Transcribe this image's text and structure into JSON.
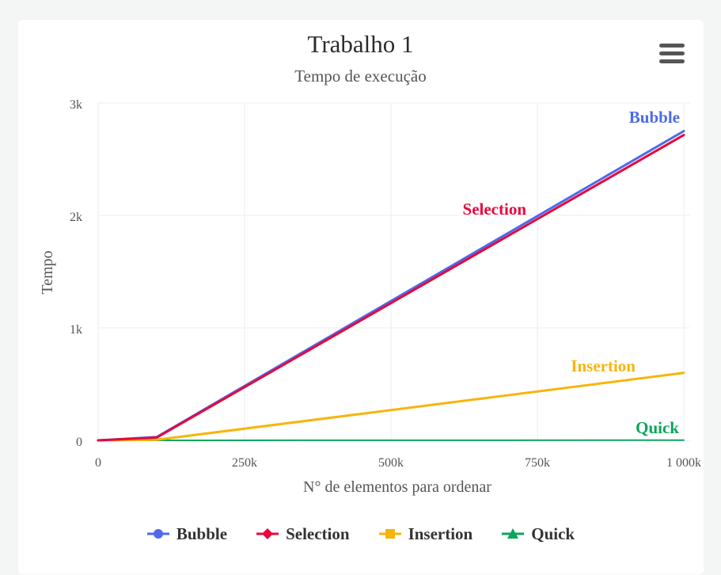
{
  "header": {
    "title": "Trabalho 1",
    "subtitle": "Tempo de execução",
    "menu_icon": "hamburger-menu-icon"
  },
  "colors": {
    "Bubble": "#4d6ae8",
    "Selection": "#e8073d",
    "Insertion": "#f7b50c",
    "Quick": "#0ba55c",
    "grid": "#ececec",
    "axis_text": "#555555"
  },
  "chart_data": {
    "type": "line",
    "title": "Trabalho 1",
    "subtitle": "Tempo de execução",
    "xlabel": "N° de elementos para ordenar",
    "ylabel": "Tempo",
    "xlim": [
      0,
      1000000
    ],
    "ylim": [
      0,
      3000
    ],
    "x_ticks": [
      0,
      250000,
      500000,
      750000,
      1000000
    ],
    "x_tick_labels": [
      "0",
      "250k",
      "500k",
      "750k",
      "1 000k"
    ],
    "y_ticks": [
      0,
      1000,
      2000,
      3000
    ],
    "y_tick_labels": [
      "0",
      "1k",
      "2k",
      "3k"
    ],
    "grid": true,
    "legend_position": "bottom-center",
    "x": [
      0,
      100000,
      1000000
    ],
    "series": [
      {
        "name": "Bubble",
        "marker": "circle",
        "values": [
          0,
          30,
          2750
        ]
      },
      {
        "name": "Selection",
        "marker": "diamond",
        "values": [
          0,
          25,
          2715
        ]
      },
      {
        "name": "Insertion",
        "marker": "square",
        "values": [
          0,
          5,
          600
        ]
      },
      {
        "name": "Quick",
        "marker": "triangle",
        "values": [
          0,
          0,
          2
        ]
      }
    ],
    "annotations": [
      {
        "series": "Bubble",
        "text": "Bubble"
      },
      {
        "series": "Selection",
        "text": "Selection"
      },
      {
        "series": "Insertion",
        "text": "Insertion"
      },
      {
        "series": "Quick",
        "text": "Quick"
      }
    ]
  }
}
